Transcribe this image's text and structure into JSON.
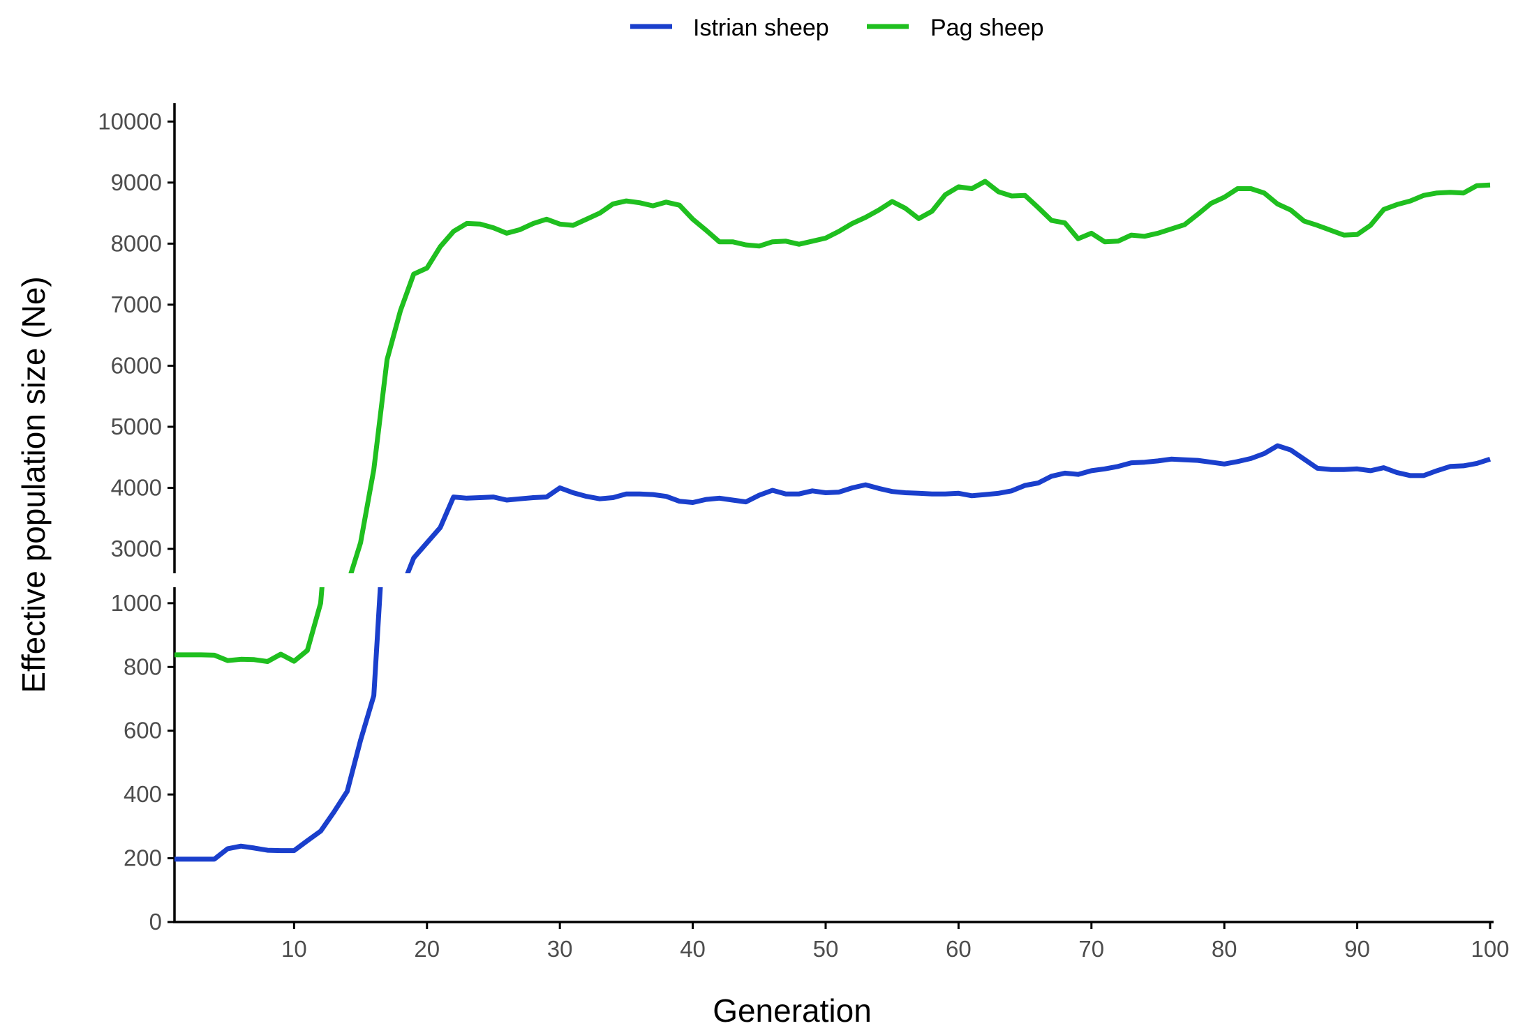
{
  "chart_data": {
    "type": "line",
    "title": "",
    "xlabel": "Generation",
    "ylabel": "Effective population size (Ne)",
    "xlim": [
      1,
      100
    ],
    "x_ticks": [
      10,
      20,
      30,
      40,
      50,
      60,
      70,
      80,
      90,
      100
    ],
    "y_axis_break": {
      "lower_range": [
        0,
        1050
      ],
      "upper_range": [
        2600,
        10300
      ],
      "lower_ticks": [
        0,
        200,
        400,
        600,
        800,
        1000
      ],
      "upper_ticks": [
        3000,
        4000,
        5000,
        6000,
        7000,
        8000,
        9000,
        10000
      ]
    },
    "grid": false,
    "legend_position": "top",
    "x": [
      1,
      2,
      3,
      4,
      5,
      6,
      7,
      8,
      9,
      10,
      11,
      12,
      13,
      14,
      15,
      16,
      17,
      18,
      19,
      20,
      21,
      22,
      23,
      24,
      25,
      26,
      27,
      28,
      29,
      30,
      31,
      32,
      33,
      34,
      35,
      36,
      37,
      38,
      39,
      40,
      41,
      42,
      43,
      44,
      45,
      46,
      47,
      48,
      49,
      50,
      51,
      52,
      53,
      54,
      55,
      56,
      57,
      58,
      59,
      60,
      61,
      62,
      63,
      64,
      65,
      66,
      67,
      68,
      69,
      70,
      71,
      72,
      73,
      74,
      75,
      76,
      77,
      78,
      79,
      80,
      81,
      82,
      83,
      84,
      85,
      86,
      87,
      88,
      89,
      90,
      91,
      92,
      93,
      94,
      95,
      96,
      97,
      98,
      99,
      100
    ],
    "series": [
      {
        "name": "Istrian sheep",
        "color": "#1a3fcc",
        "values": [
          197,
          197,
          197,
          197,
          230,
          238,
          232,
          225,
          224,
          224,
          255,
          285,
          345,
          410,
          570,
          710,
          1400,
          2300,
          2850,
          3100,
          3350,
          3850,
          3830,
          3840,
          3850,
          3800,
          3820,
          3840,
          3850,
          4000,
          3920,
          3860,
          3820,
          3840,
          3900,
          3900,
          3890,
          3860,
          3780,
          3760,
          3810,
          3830,
          3800,
          3770,
          3880,
          3960,
          3900,
          3900,
          3950,
          3920,
          3930,
          4000,
          4050,
          3990,
          3940,
          3920,
          3910,
          3900,
          3900,
          3910,
          3870,
          3890,
          3910,
          3950,
          4040,
          4080,
          4190,
          4240,
          4220,
          4280,
          4310,
          4350,
          4410,
          4420,
          4440,
          4470,
          4460,
          4450,
          4420,
          4390,
          4430,
          4480,
          4560,
          4690,
          4620,
          4470,
          4320,
          4300,
          4300,
          4310,
          4280,
          4330,
          4250,
          4200,
          4200,
          4280,
          4350,
          4360,
          4400,
          4470
        ]
      },
      {
        "name": "Pag sheep",
        "color": "#1fbf1f",
        "values": [
          838,
          838,
          838,
          837,
          820,
          824,
          823,
          817,
          840,
          818,
          852,
          1000,
          1500,
          2400,
          3100,
          4300,
          6100,
          6900,
          7500,
          7600,
          7950,
          8200,
          8330,
          8320,
          8260,
          8170,
          8230,
          8330,
          8400,
          8320,
          8300,
          8400,
          8500,
          8650,
          8700,
          8670,
          8620,
          8680,
          8630,
          8400,
          8220,
          8030,
          8030,
          7980,
          7960,
          8030,
          8040,
          7990,
          8040,
          8090,
          8200,
          8330,
          8430,
          8550,
          8690,
          8580,
          8410,
          8530,
          8800,
          8930,
          8900,
          9020,
          8850,
          8780,
          8790,
          8590,
          8380,
          8340,
          8080,
          8170,
          8030,
          8040,
          8140,
          8120,
          8170,
          8240,
          8310,
          8480,
          8660,
          8760,
          8900,
          8900,
          8830,
          8650,
          8550,
          8370,
          8300,
          8220,
          8140,
          8150,
          8300,
          8560,
          8640,
          8700,
          8790,
          8830,
          8840,
          8830,
          8950,
          8960
        ]
      }
    ]
  }
}
